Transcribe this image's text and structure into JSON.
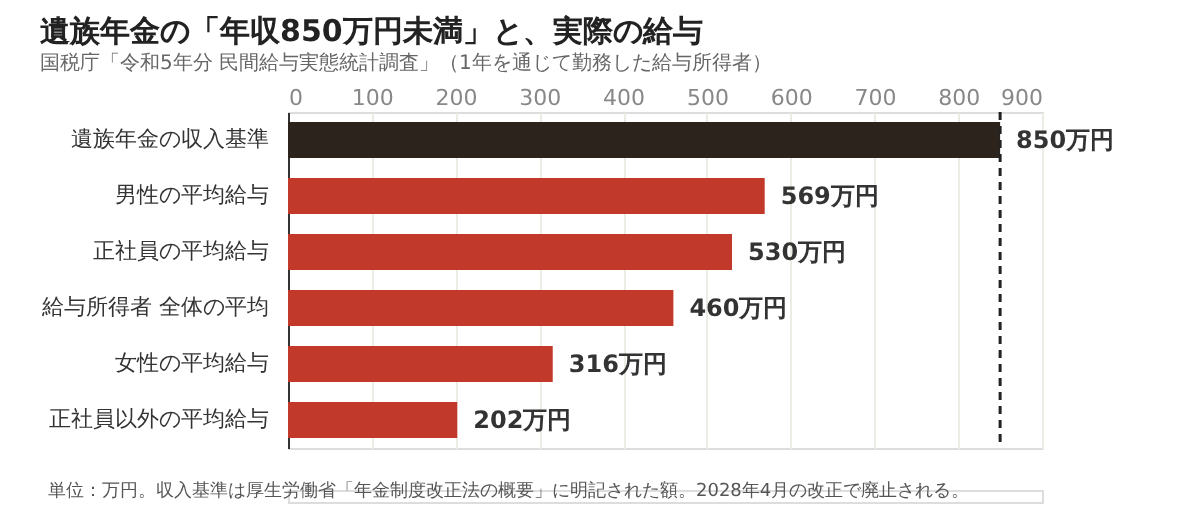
{
  "chart_data": {
    "type": "bar",
    "orientation": "horizontal",
    "title": "遺族年金の「年収850万円未満」と、実際の給与",
    "subtitle": "国税庁「令和5年分 民間給与実態統計調査」（1年を通じて勤務した給与所得者）",
    "categories": [
      "遺族年金の収入基準",
      "男性の平均給与",
      "正社員の平均給与",
      "給与所得者 全体の平均",
      "女性の平均給与",
      "正社員以外の平均給与"
    ],
    "values": [
      850,
      569,
      530,
      460,
      316,
      202
    ],
    "colors": [
      "#2b231c",
      "#c0392b",
      "#c0392b",
      "#c0392b",
      "#c0392b",
      "#c0392b"
    ],
    "value_labels": [
      "850万円",
      "569万円",
      "530万円",
      "460万円",
      "316万円",
      "202万円"
    ],
    "xlim": [
      0,
      900
    ],
    "xticks": [
      0,
      100,
      200,
      300,
      400,
      500,
      600,
      700,
      800,
      900
    ],
    "grid": "x",
    "ref_lines": [
      {
        "axis": "x",
        "value": 850,
        "label": null,
        "color": "#222222",
        "line_style": "dashed"
      }
    ],
    "annotations": [
      "単位：万円。収入基準は厚生労働省「年金制度改正法の概要」に明記された額。2028年4月の改正で廃止される。"
    ]
  }
}
